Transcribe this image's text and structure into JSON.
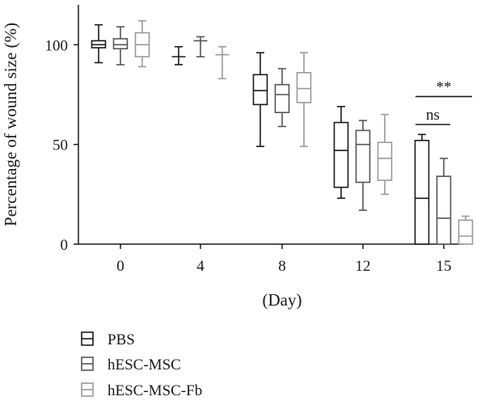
{
  "chart_data": {
    "type": "box",
    "ylabel": "Percentage of wound size (%)",
    "xlabel": "(Day)",
    "ylim": [
      0,
      120
    ],
    "yticks": [
      0,
      50,
      100
    ],
    "categories": [
      "0",
      "4",
      "8",
      "12",
      "15"
    ],
    "grid": false,
    "legend_position": "bottom-left",
    "series": [
      {
        "name": "PBS",
        "color": "#1a1a1a",
        "boxes": [
          {
            "day": "0",
            "min": 91,
            "q1": 98.5,
            "median": 100,
            "q3": 102,
            "max": 110
          },
          {
            "day": "4",
            "min": 90,
            "q1": 94,
            "median": 94,
            "q3": 94,
            "max": 99
          },
          {
            "day": "8",
            "min": 49,
            "q1": 70,
            "median": 77,
            "q3": 85,
            "max": 96
          },
          {
            "day": "12",
            "min": 23,
            "q1": 28.5,
            "median": 47,
            "q3": 61,
            "max": 69
          },
          {
            "day": "15",
            "min": 0,
            "q1": 0,
            "median": 23,
            "q3": 52,
            "max": 55
          }
        ]
      },
      {
        "name": "hESC-MSC",
        "color": "#555555",
        "boxes": [
          {
            "day": "0",
            "min": 90,
            "q1": 98,
            "median": 100,
            "q3": 103,
            "max": 109
          },
          {
            "day": "4",
            "min": 94,
            "q1": 102,
            "median": 102,
            "q3": 102,
            "max": 104
          },
          {
            "day": "8",
            "min": 59,
            "q1": 66,
            "median": 75,
            "q3": 80,
            "max": 88
          },
          {
            "day": "12",
            "min": 17,
            "q1": 31,
            "median": 50,
            "q3": 57,
            "max": 62
          },
          {
            "day": "15",
            "min": 0,
            "q1": 0,
            "median": 13,
            "q3": 34,
            "max": 43
          }
        ]
      },
      {
        "name": "hESC-MSC-Fb",
        "color": "#9a9a9a",
        "boxes": [
          {
            "day": "0",
            "min": 89,
            "q1": 94,
            "median": 100,
            "q3": 106,
            "max": 112
          },
          {
            "day": "4",
            "min": 83,
            "q1": 95,
            "median": 95,
            "q3": 95,
            "max": 99
          },
          {
            "day": "8",
            "min": 49,
            "q1": 71,
            "median": 78,
            "q3": 86,
            "max": 96
          },
          {
            "day": "12",
            "min": 25,
            "q1": 32,
            "median": 43,
            "q3": 51,
            "max": 65
          },
          {
            "day": "15",
            "min": 0,
            "q1": 0,
            "median": 4,
            "q3": 12,
            "max": 14
          }
        ]
      }
    ],
    "annotations": [
      {
        "label": "**",
        "day": "15",
        "from": "PBS",
        "to": "hESC-MSC-Fb",
        "y": 74
      },
      {
        "label": "ns",
        "day": "15",
        "from": "PBS",
        "to": "hESC-MSC",
        "y": 60
      }
    ]
  }
}
